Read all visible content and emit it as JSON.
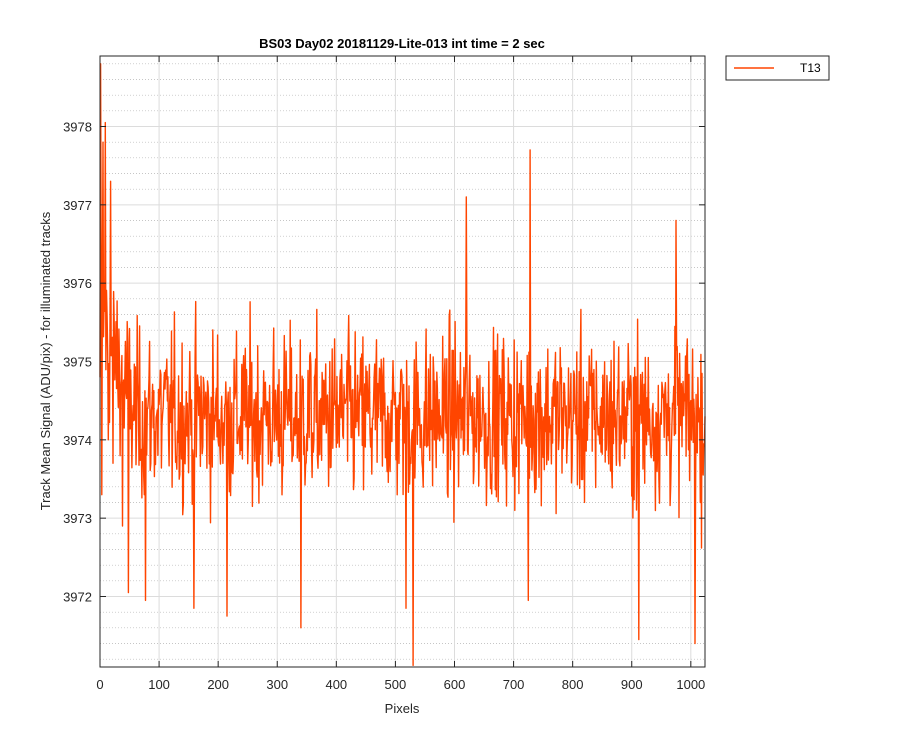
{
  "chart_data": {
    "type": "line",
    "title": "BS03 Day02 20181129-Lite-013 int time = 2 sec",
    "xlabel": "Pixels",
    "ylabel": "Track Mean Signal (ADU/pix) - for illuminated tracks",
    "xlim": [
      0,
      1024
    ],
    "ylim": [
      3971.1,
      3978.9
    ],
    "xticks": [
      0,
      100,
      200,
      300,
      400,
      500,
      600,
      700,
      800,
      900,
      1000
    ],
    "yticks": [
      3972,
      3973,
      3974,
      3975,
      3976,
      3977,
      3978
    ],
    "xtick_labels": [
      "0",
      "100",
      "200",
      "300",
      "400",
      "500",
      "600",
      "700",
      "800",
      "900",
      "1000"
    ],
    "ytick_labels": [
      "3972",
      "3973",
      "3974",
      "3975",
      "3976",
      "3977",
      "3978"
    ],
    "grid": true,
    "minor_grid_y": true,
    "legend_position": "outside-top-right",
    "series": [
      {
        "name": "T13",
        "color": "#ff4500",
        "mean": 3974.3,
        "noise_sd": 0.75,
        "x_step": 1,
        "features": [
          {
            "x": 0,
            "y": 3974.8
          },
          {
            "x": 1,
            "y": 3978.8
          },
          {
            "x": 3,
            "y": 3973.3
          },
          {
            "x": 5,
            "y": 3977.8
          },
          {
            "x": 9,
            "y": 3978.05
          },
          {
            "x": 14,
            "y": 3974.0
          },
          {
            "x": 18,
            "y": 3977.3
          },
          {
            "x": 22,
            "y": 3973.7
          },
          {
            "x": 38,
            "y": 3972.9
          },
          {
            "x": 48,
            "y": 3972.05
          },
          {
            "x": 77,
            "y": 3971.95
          },
          {
            "x": 159,
            "y": 3971.85
          },
          {
            "x": 215,
            "y": 3971.75
          },
          {
            "x": 340,
            "y": 3971.6
          },
          {
            "x": 518,
            "y": 3971.85
          },
          {
            "x": 530,
            "y": 3971.1
          },
          {
            "x": 620,
            "y": 3977.1
          },
          {
            "x": 728,
            "y": 3977.7
          },
          {
            "x": 725,
            "y": 3971.95
          },
          {
            "x": 912,
            "y": 3971.45
          },
          {
            "x": 975,
            "y": 3976.8
          },
          {
            "x": 1007,
            "y": 3971.4
          },
          {
            "x": 1016,
            "y": 3973.2
          },
          {
            "x": 1024,
            "y": 3974.3
          }
        ]
      }
    ]
  }
}
